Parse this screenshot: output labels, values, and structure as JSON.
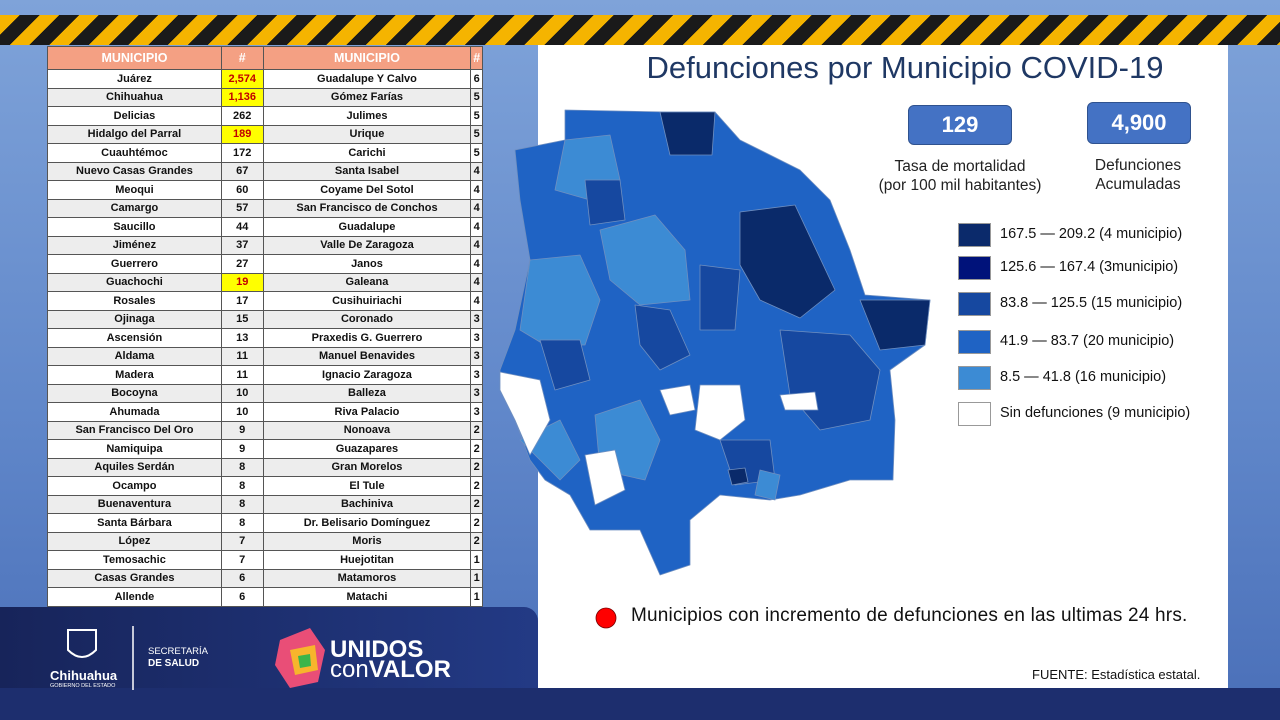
{
  "title": "Defunciones por Municipio COVID-19",
  "table": {
    "header": [
      "MUNICIPIO",
      "#",
      "MUNICIPIO",
      "#"
    ],
    "rows": [
      [
        "Juárez",
        "2,574",
        "Guadalupe Y Calvo",
        "6"
      ],
      [
        "Chihuahua",
        "1,136",
        "Gómez Farías",
        "5"
      ],
      [
        "Delicias",
        "262",
        "Julimes",
        "5"
      ],
      [
        "Hidalgo del Parral",
        "189",
        "Urique",
        "5"
      ],
      [
        "Cuauhtémoc",
        "172",
        "Carichi",
        "5"
      ],
      [
        "Nuevo Casas Grandes",
        "67",
        "Santa Isabel",
        "4"
      ],
      [
        "Meoqui",
        "60",
        "Coyame Del Sotol",
        "4"
      ],
      [
        "Camargo",
        "57",
        "San Francisco de Conchos",
        "4"
      ],
      [
        "Saucillo",
        "44",
        "Guadalupe",
        "4"
      ],
      [
        "Jiménez",
        "37",
        "Valle De Zaragoza",
        "4"
      ],
      [
        "Guerrero",
        "27",
        "Janos",
        "4"
      ],
      [
        "Guachochi",
        "19",
        "Galeana",
        "4"
      ],
      [
        "Rosales",
        "17",
        "Cusihuiriachi",
        "4"
      ],
      [
        "Ojinaga",
        "15",
        "Coronado",
        "3"
      ],
      [
        "Ascensión",
        "13",
        "Praxedis G. Guerrero",
        "3"
      ],
      [
        "Aldama",
        "11",
        "Manuel Benavides",
        "3"
      ],
      [
        "Madera",
        "11",
        "Ignacio Zaragoza",
        "3"
      ],
      [
        "Bocoyna",
        "10",
        "Balleza",
        "3"
      ],
      [
        "Ahumada",
        "10",
        "Riva Palacio",
        "3"
      ],
      [
        "San Francisco Del Oro",
        "9",
        "Nonoava",
        "2"
      ],
      [
        "Namiquipa",
        "9",
        "Guazapares",
        "2"
      ],
      [
        "Aquiles Serdán",
        "8",
        "Gran Morelos",
        "2"
      ],
      [
        "Ocampo",
        "8",
        "El Tule",
        "2"
      ],
      [
        "Buenaventura",
        "8",
        "Bachiniva",
        "2"
      ],
      [
        "Santa Bárbara",
        "8",
        "Dr. Belisario Domínguez",
        "2"
      ],
      [
        "López",
        "7",
        "Moris",
        "2"
      ],
      [
        "Temosachic",
        "7",
        "Huejotitan",
        "1"
      ],
      [
        "Casas Grandes",
        "6",
        "Matamoros",
        "1"
      ],
      [
        "Allende",
        "6",
        "Matachi",
        "1"
      ]
    ]
  },
  "stats": [
    {
      "value": "129",
      "label_lines": [
        "Tasa de mortalidad",
        "(por 100 mil habitantes)"
      ]
    },
    {
      "value": "4,900",
      "label_lines": [
        "Defunciones",
        "Acumuladas"
      ]
    }
  ],
  "legend": [
    {
      "label": "167.5 — 209.2 (4 municipio)",
      "color": "#0b2a6b"
    },
    {
      "label": "125.6 — 167.4 (3municipio)",
      "color": "#00127a"
    },
    {
      "label": "83.8 — 125.5 (15 municipio)",
      "color": "#1648a0"
    },
    {
      "label": "41.9 — 83.7 (20 municipio)",
      "color": "#1f63c4"
    },
    {
      "label": "8.5 — 41.8 (16 municipio)",
      "color": "#3c8bd4"
    },
    {
      "label": "Sin defunciones (9 municipio)",
      "color": "#ffffff"
    }
  ],
  "note": "Municipios con incremento de defunciones en las ultimas 24 hrs.",
  "source": "FUENTE:  Estadística estatal.",
  "logos": {
    "chihuahua": "Chihuahua",
    "gobierno": "GOBIERNO DEL ESTADO",
    "secretaria": "SECRETARÍA",
    "salud": "DE SALUD",
    "unidos": "UNIDOS",
    "con": "con",
    "valor": "VALOR"
  }
}
